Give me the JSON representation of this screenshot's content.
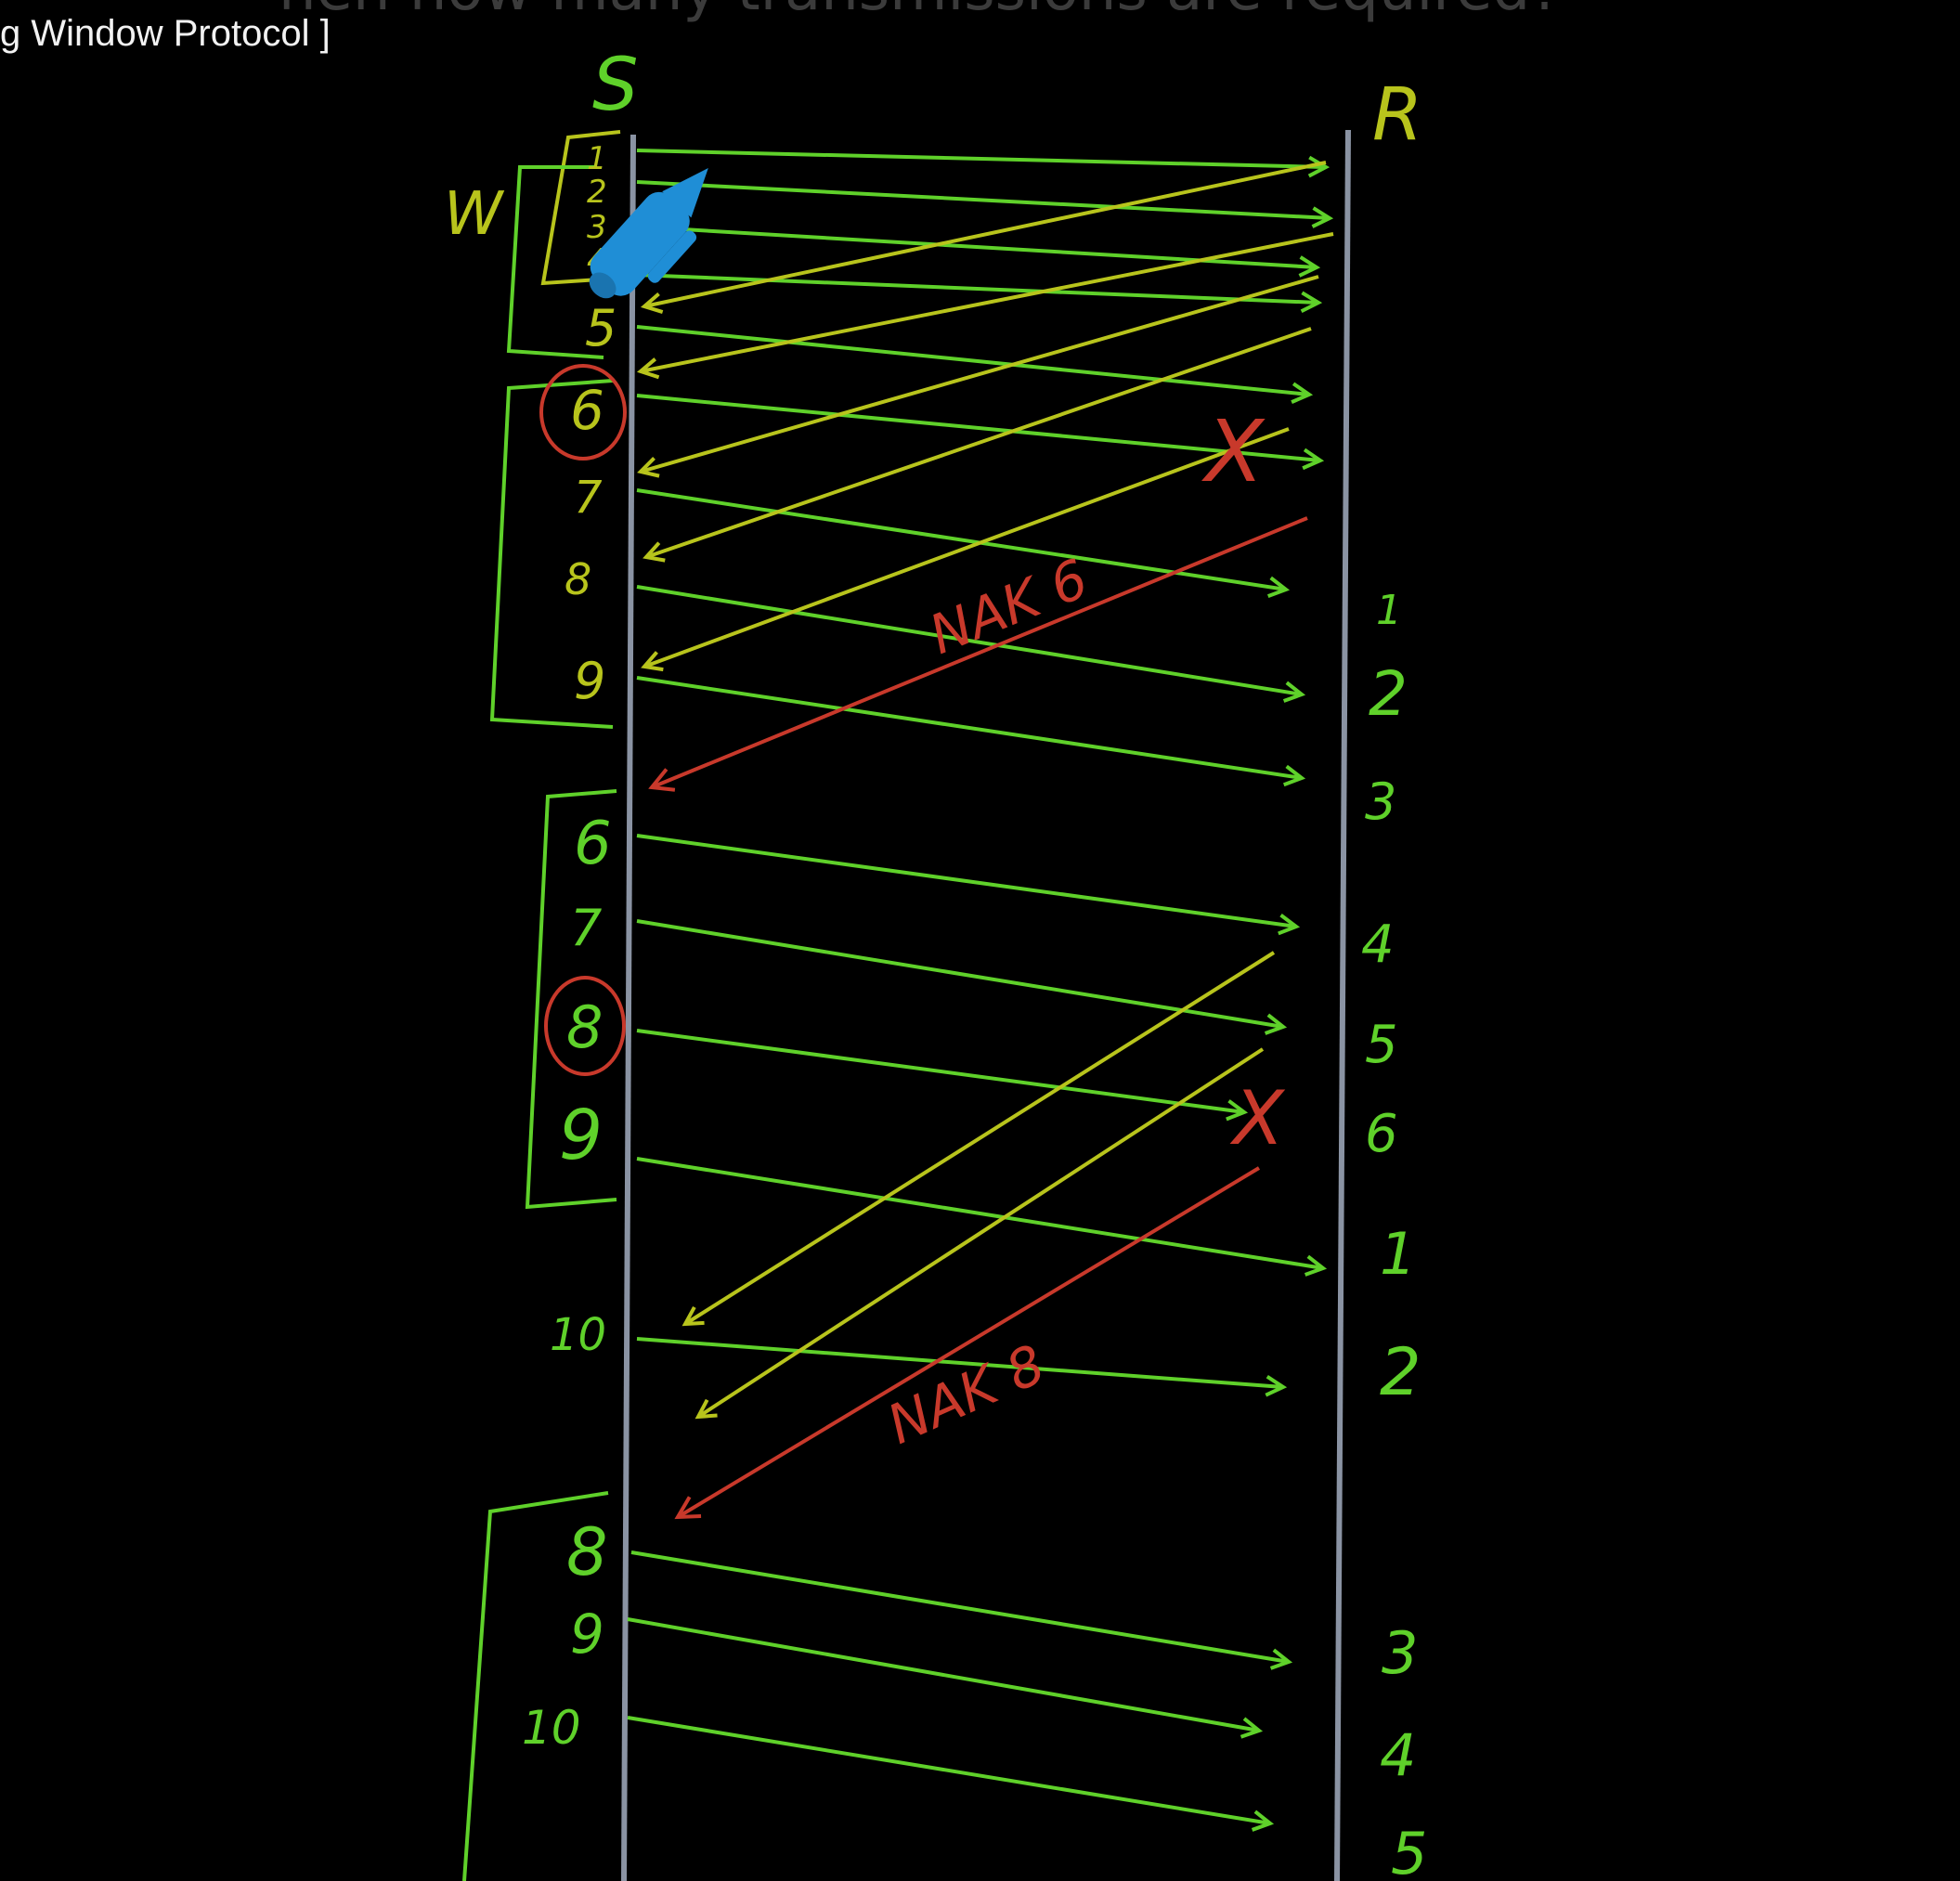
{
  "header": {
    "question_fragment": "hen how many transmissions are required?",
    "title_fragment": "g Window Protocol ]"
  },
  "diagram": {
    "sender_label": "S",
    "receiver_label": "R",
    "window_label": "W",
    "sender_frames": [
      "1",
      "2",
      "3",
      "4",
      "5",
      "6",
      "7",
      "8",
      "9",
      "6",
      "7",
      "8",
      "9",
      "10",
      "8",
      "9",
      "10"
    ],
    "receiver_counts": [
      "1",
      "2",
      "3",
      "4",
      "5",
      "6",
      "1",
      "2",
      "3",
      "4",
      "5"
    ],
    "nak_labels": [
      "NAK 6",
      "NAK 8"
    ],
    "lost_marker": "X",
    "colors": {
      "frame": "#5fd12a",
      "ack": "#b8c41c",
      "nak": "#c8392b",
      "line": "#8a93a3",
      "pen": "#1f8ed6"
    }
  }
}
